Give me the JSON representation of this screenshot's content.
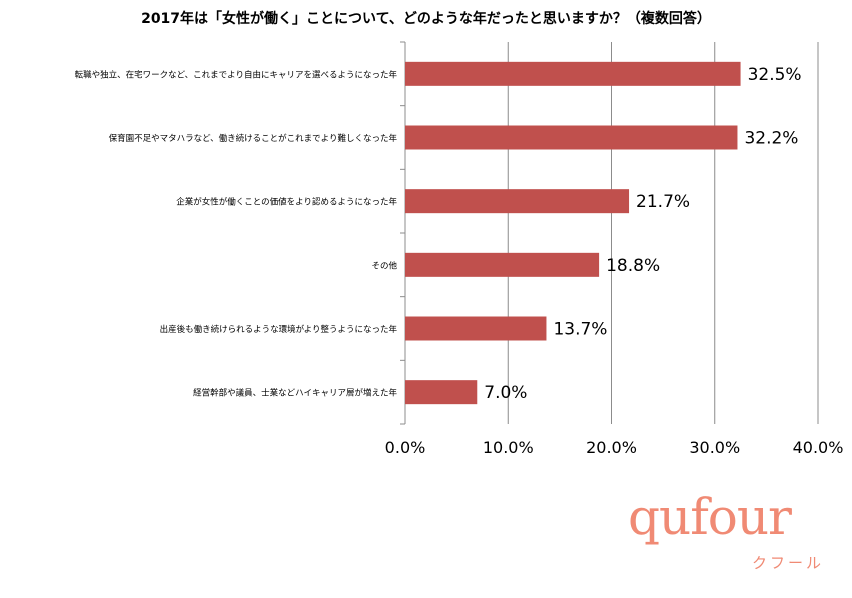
{
  "title": "2017年は「女性が働く」ことについて、どのような年だったと思いますか？（複数回答）",
  "chart_data": {
    "type": "bar",
    "orientation": "horizontal",
    "title": "2017年は「女性が働く」ことについて、どのような年だったと思いますか？（複数回答）",
    "categories": [
      "転職や独立、在宅ワークなど、これまでより自由にキャリアを選べるようになった年",
      "保育園不足やマタハラなど、働き続けることがこれまでより難しくなった年",
      "企業が女性が働くことの価値をより認めるようになった年",
      "その他",
      "出産後も働き続けられるような環境がより整うようになった年",
      "経営幹部や議員、士業などハイキャリア層が増えた年"
    ],
    "values": [
      32.5,
      32.2,
      21.7,
      18.8,
      13.7,
      7.0
    ],
    "value_labels": [
      "32.5%",
      "32.2%",
      "21.7%",
      "18.8%",
      "13.7%",
      "7.0%"
    ],
    "xlim": [
      0,
      40
    ],
    "xticks": [
      0,
      10,
      20,
      30,
      40
    ],
    "xtick_labels": [
      "0.0%",
      "10.0%",
      "20.0%",
      "30.0%",
      "40.0%"
    ],
    "grid": true,
    "bar_color": "#c0504d"
  },
  "logo": {
    "main": "qufour",
    "sub": "クフール"
  }
}
